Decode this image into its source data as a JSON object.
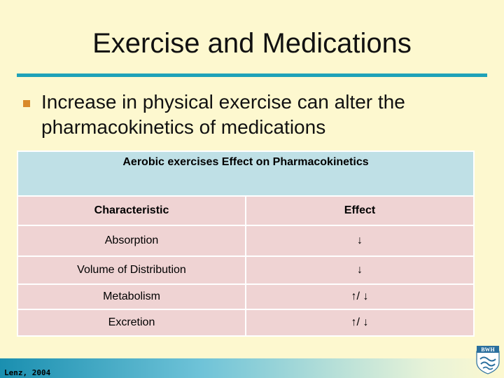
{
  "slide": {
    "title": "Exercise and Medications",
    "bullet": "Increase in physical exercise can alter the pharmacokinetics of medications"
  },
  "table": {
    "caption": "Aerobic exercises Effect on Pharmacokinetics",
    "headers": [
      "Characteristic",
      "Effect"
    ],
    "rows": [
      {
        "characteristic": "Absorption",
        "effect": "↓"
      },
      {
        "characteristic": "Volume of Distribution",
        "effect": "↓"
      },
      {
        "characteristic": "Metabolism",
        "effect": "↑/ ↓"
      },
      {
        "characteristic": "Excretion",
        "effect": "↑/ ↓"
      }
    ]
  },
  "footer": {
    "credit": "Lenz, 2004",
    "logo_text": "BWH",
    "logo_icon": "shield-icon"
  },
  "colors": {
    "background": "#fdf8cf",
    "accent_rule": "#1fa2b8",
    "bullet": "#d98a2b",
    "table_header": "#bfe0e6",
    "table_cell": "#efd3d3"
  }
}
